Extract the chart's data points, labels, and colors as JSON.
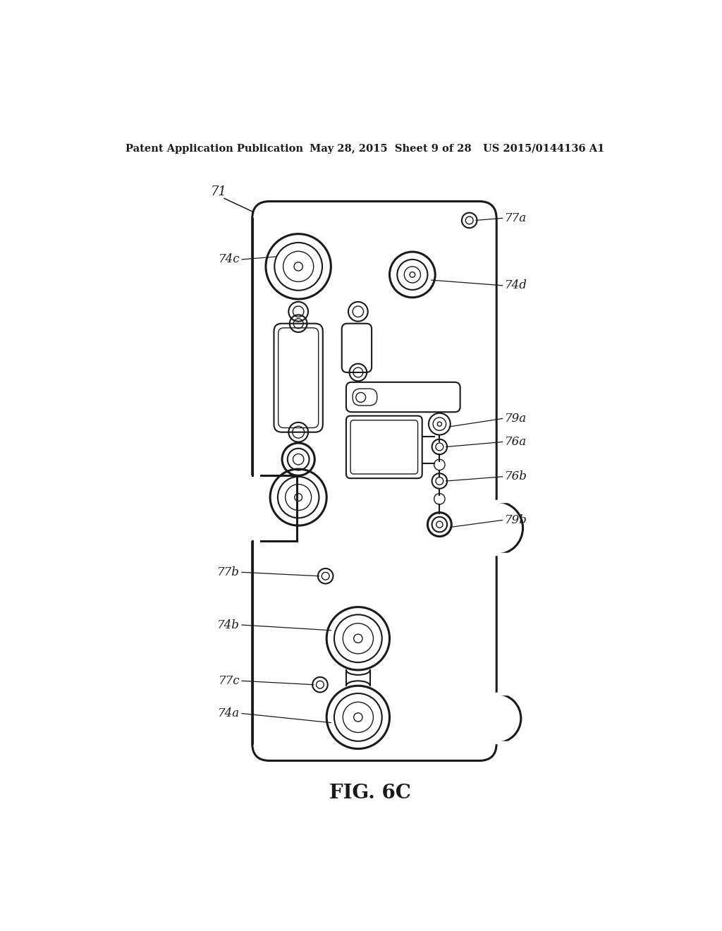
{
  "bg_color": "#ffffff",
  "line_color": "#1a1a1a",
  "header_left": "Patent Application Publication",
  "header_mid": "May 28, 2015  Sheet 9 of 28",
  "header_right": "US 2015/0144136 A1",
  "figure_label": "FIG. 6C"
}
